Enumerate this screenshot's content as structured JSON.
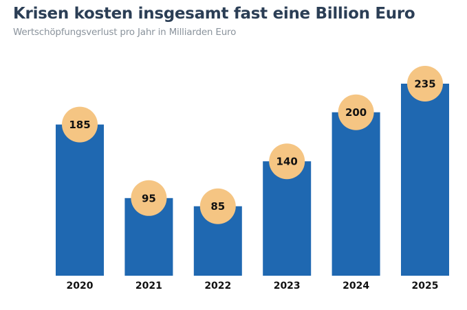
{
  "chart_data": {
    "type": "bar",
    "title": "Krisen kosten insgesamt fast eine Billion Euro",
    "subtitle": "Wertschöpfungsverlust pro Jahr in Milliarden Euro",
    "xlabel": "",
    "ylabel": "",
    "categories": [
      "2020",
      "2021",
      "2022",
      "2023",
      "2024",
      "2025"
    ],
    "values": [
      185,
      95,
      85,
      140,
      200,
      235
    ],
    "ylim": [
      0,
      235
    ],
    "grid": false,
    "colors": {
      "bar": "#1f68b1",
      "label_bubble": "#f5c583"
    }
  }
}
